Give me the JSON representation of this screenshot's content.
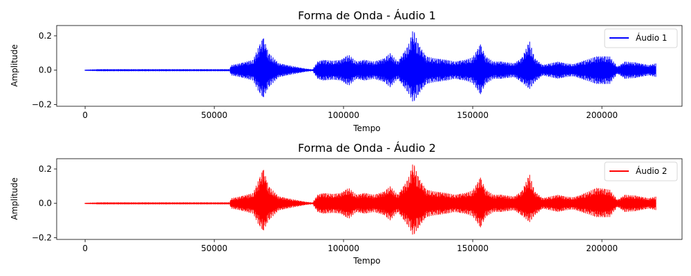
{
  "chart_data": [
    {
      "type": "line",
      "title": "Forma de Onda - Áudio 1",
      "xlabel": "Tempo",
      "ylabel": "Amplitude",
      "xlim": [
        -11000,
        231000
      ],
      "ylim": [
        -0.21,
        0.26
      ],
      "xticks": [
        0,
        50000,
        100000,
        150000,
        200000
      ],
      "xtick_labels": [
        "0",
        "50000",
        "100000",
        "150000",
        "200000"
      ],
      "yticks": [
        -0.2,
        0.0,
        0.2
      ],
      "ytick_labels": [
        "−0.2",
        "0.0",
        "0.2"
      ],
      "grid": false,
      "legend_position": "top-right",
      "series": [
        {
          "name": "Áudio 1",
          "color": "#0000ff",
          "envelope": {
            "x": [
              0,
              5000,
              56000,
              56500,
              60000,
              65000,
              67000,
              69000,
              71000,
              75000,
              80000,
              85000,
              88000,
              90000,
              92000,
              96000,
              99000,
              102000,
              105000,
              108000,
              112000,
              116000,
              118000,
              121000,
              125000,
              127000,
              129000,
              132000,
              135000,
              140000,
              143000,
              147000,
              150000,
              153000,
              155000,
              158000,
              161000,
              166000,
              169000,
              172000,
              174000,
              177000,
              183000,
              186000,
              189000,
              192000,
              198000,
              203000,
              206000,
              209000,
              213000,
              218000,
              221000
            ],
            "upper": [
              0.003,
              0.006,
              0.006,
              0.03,
              0.04,
              0.06,
              0.13,
              0.19,
              0.1,
              0.04,
              0.025,
              0.01,
              0.005,
              0.05,
              0.06,
              0.055,
              0.06,
              0.09,
              0.05,
              0.06,
              0.05,
              0.07,
              0.1,
              0.05,
              0.14,
              0.24,
              0.15,
              0.08,
              0.07,
              0.06,
              0.05,
              0.06,
              0.075,
              0.15,
              0.08,
              0.05,
              0.05,
              0.04,
              0.07,
              0.17,
              0.07,
              0.03,
              0.05,
              0.04,
              0.035,
              0.05,
              0.08,
              0.08,
              0.02,
              0.05,
              0.045,
              0.03,
              0.04
            ],
            "lower": [
              -0.003,
              -0.006,
              -0.006,
              -0.03,
              -0.04,
              -0.06,
              -0.12,
              -0.16,
              -0.1,
              -0.04,
              -0.025,
              -0.01,
              -0.005,
              -0.05,
              -0.06,
              -0.055,
              -0.06,
              -0.09,
              -0.05,
              -0.06,
              -0.05,
              -0.07,
              -0.1,
              -0.05,
              -0.13,
              -0.19,
              -0.14,
              -0.08,
              -0.07,
              -0.06,
              -0.05,
              -0.06,
              -0.075,
              -0.14,
              -0.08,
              -0.05,
              -0.05,
              -0.04,
              -0.07,
              -0.11,
              -0.07,
              -0.03,
              -0.05,
              -0.04,
              -0.035,
              -0.05,
              -0.08,
              -0.08,
              -0.02,
              -0.05,
              -0.045,
              -0.03,
              -0.04
            ]
          }
        }
      ]
    },
    {
      "type": "line",
      "title": "Forma de Onda - Áudio 2",
      "xlabel": "Tempo",
      "ylabel": "Amplitude",
      "xlim": [
        -11000,
        231000
      ],
      "ylim": [
        -0.21,
        0.26
      ],
      "xticks": [
        0,
        50000,
        100000,
        150000,
        200000
      ],
      "xtick_labels": [
        "0",
        "50000",
        "100000",
        "150000",
        "200000"
      ],
      "yticks": [
        -0.2,
        0.0,
        0.2
      ],
      "ytick_labels": [
        "−0.2",
        "0.0",
        "0.2"
      ],
      "grid": false,
      "legend_position": "top-right",
      "series": [
        {
          "name": "Áudio 2",
          "color": "#ff0000",
          "envelope": {
            "x": [
              0,
              5000,
              56000,
              56500,
              60000,
              65000,
              67000,
              69000,
              71000,
              75000,
              80000,
              85000,
              88000,
              90000,
              92000,
              96000,
              99000,
              102000,
              105000,
              108000,
              112000,
              116000,
              118000,
              121000,
              125000,
              127000,
              129000,
              132000,
              135000,
              140000,
              143000,
              147000,
              150000,
              153000,
              155000,
              158000,
              161000,
              166000,
              169000,
              172000,
              174000,
              177000,
              183000,
              186000,
              189000,
              192000,
              198000,
              203000,
              206000,
              209000,
              213000,
              218000,
              221000
            ],
            "upper": [
              0.003,
              0.006,
              0.006,
              0.03,
              0.04,
              0.06,
              0.13,
              0.2,
              0.1,
              0.04,
              0.025,
              0.01,
              0.005,
              0.05,
              0.06,
              0.055,
              0.06,
              0.09,
              0.05,
              0.06,
              0.05,
              0.07,
              0.1,
              0.05,
              0.14,
              0.24,
              0.15,
              0.08,
              0.07,
              0.06,
              0.05,
              0.06,
              0.075,
              0.15,
              0.08,
              0.05,
              0.05,
              0.04,
              0.07,
              0.17,
              0.07,
              0.03,
              0.05,
              0.04,
              0.035,
              0.05,
              0.09,
              0.08,
              0.02,
              0.05,
              0.045,
              0.03,
              0.04
            ],
            "lower": [
              -0.003,
              -0.006,
              -0.006,
              -0.03,
              -0.04,
              -0.06,
              -0.12,
              -0.16,
              -0.1,
              -0.04,
              -0.025,
              -0.01,
              -0.005,
              -0.05,
              -0.06,
              -0.055,
              -0.06,
              -0.09,
              -0.05,
              -0.06,
              -0.05,
              -0.07,
              -0.1,
              -0.05,
              -0.13,
              -0.19,
              -0.14,
              -0.08,
              -0.07,
              -0.06,
              -0.05,
              -0.06,
              -0.075,
              -0.14,
              -0.08,
              -0.05,
              -0.05,
              -0.04,
              -0.07,
              -0.11,
              -0.07,
              -0.03,
              -0.05,
              -0.04,
              -0.035,
              -0.05,
              -0.08,
              -0.08,
              -0.02,
              -0.05,
              -0.045,
              -0.03,
              -0.04
            ]
          }
        }
      ]
    }
  ]
}
